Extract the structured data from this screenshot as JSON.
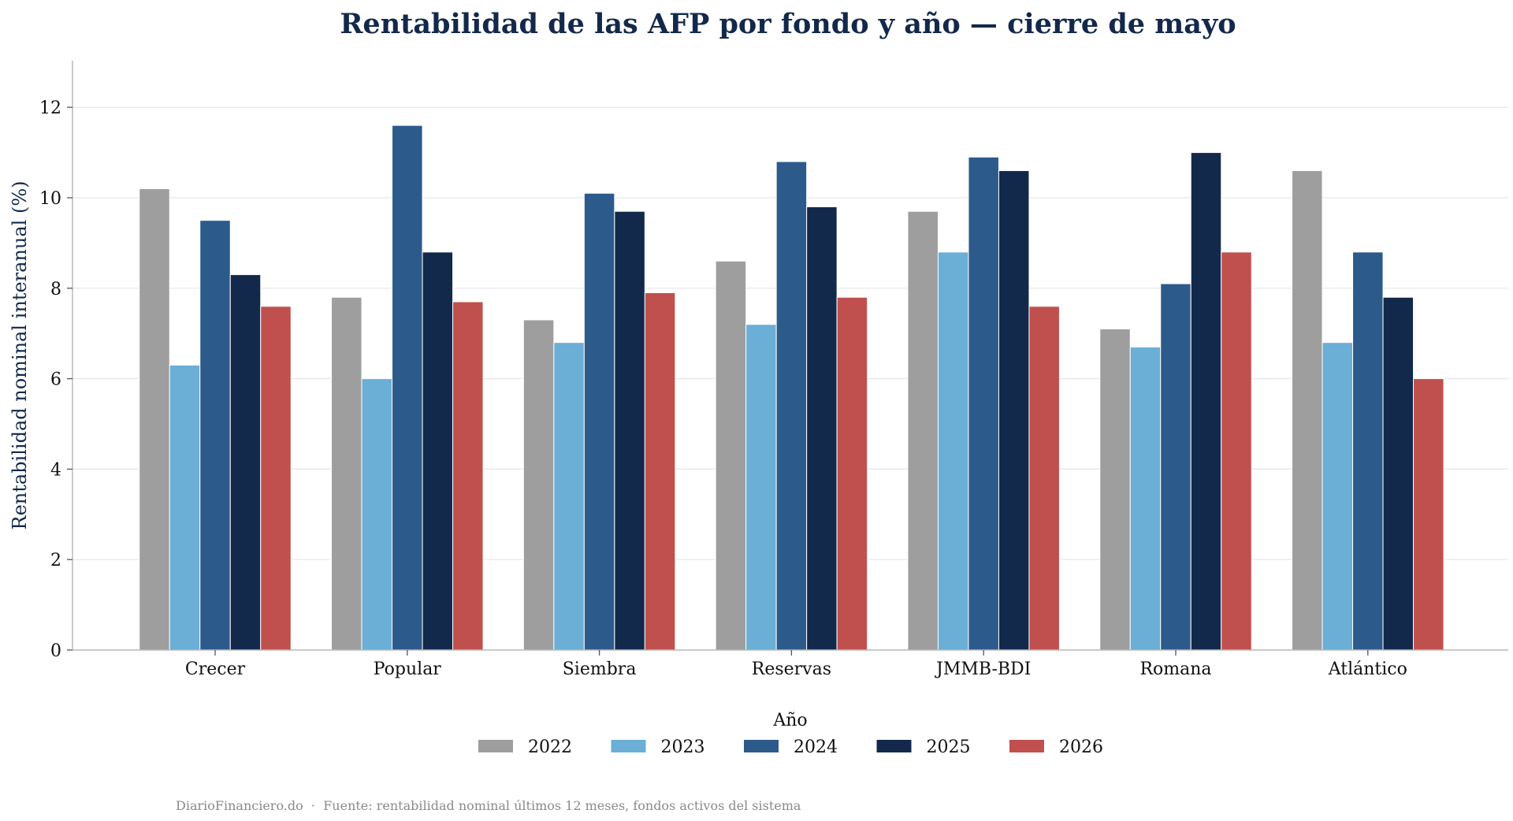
{
  "chart_data": {
    "type": "bar",
    "title": "Rentabilidad de las AFP por fondo y año — cierre de mayo",
    "xlabel": "",
    "ylabel": "Rentabilidad nominal interanual (%)",
    "ylim": [
      0,
      13
    ],
    "yticks": [
      0,
      2,
      4,
      6,
      8,
      10,
      12
    ],
    "grid": true,
    "legend_title": "Año",
    "legend_position": "bottom-center",
    "categories": [
      "Crecer",
      "Popular",
      "Siembra",
      "Reservas",
      "JMMB-BDI",
      "Romana",
      "Atlántico"
    ],
    "series": [
      {
        "name": "2022",
        "color": "#9e9e9e",
        "values": [
          10.2,
          7.8,
          7.3,
          8.6,
          9.7,
          7.1,
          10.6
        ]
      },
      {
        "name": "2023",
        "color": "#6baed6",
        "values": [
          6.3,
          6.0,
          6.8,
          7.2,
          8.8,
          6.7,
          6.8
        ]
      },
      {
        "name": "2024",
        "color": "#2c5a8a",
        "values": [
          9.5,
          11.6,
          10.1,
          10.8,
          10.9,
          8.1,
          8.8
        ]
      },
      {
        "name": "2025",
        "color": "#13294b",
        "values": [
          8.3,
          8.8,
          9.7,
          9.8,
          10.6,
          11.0,
          7.8
        ]
      },
      {
        "name": "2026",
        "color": "#c0504d",
        "values": [
          7.6,
          7.7,
          7.9,
          7.8,
          7.6,
          8.8,
          6.0
        ]
      }
    ]
  },
  "footer": {
    "text": "DiarioFinanciero.do  ·  Fuente: rentabilidad nominal últimos 12 meses, fondos activos del sistema"
  }
}
